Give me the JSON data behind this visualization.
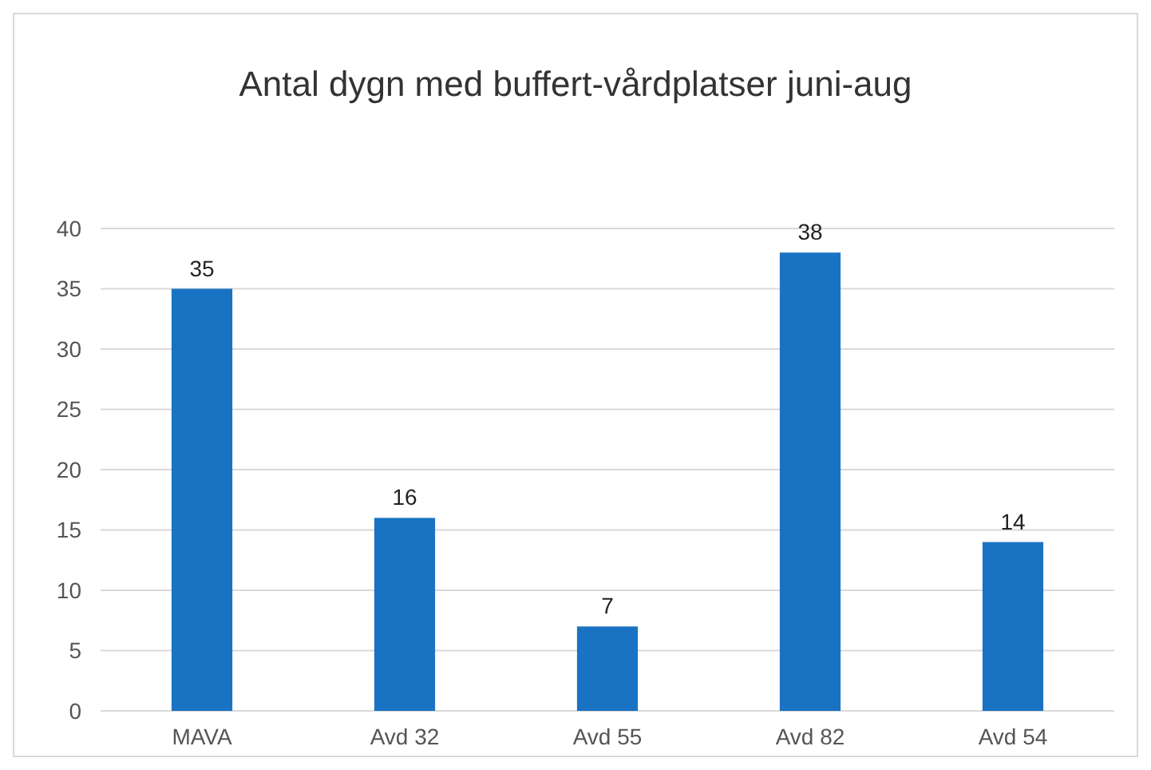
{
  "chart_data": {
    "type": "bar",
    "title": "Antal dygn med buffert-vårdplatser  juni-aug",
    "categories": [
      "MAVA",
      "Avd 32",
      "Avd 55",
      "Avd 82",
      "Avd 54"
    ],
    "values": [
      35,
      16,
      7,
      38,
      14
    ],
    "color": "#1a73c2",
    "ylim": [
      0,
      40
    ],
    "yticks": [
      0,
      5,
      10,
      15,
      20,
      25,
      30,
      35,
      40
    ],
    "grid": "y",
    "data_labels": true
  }
}
